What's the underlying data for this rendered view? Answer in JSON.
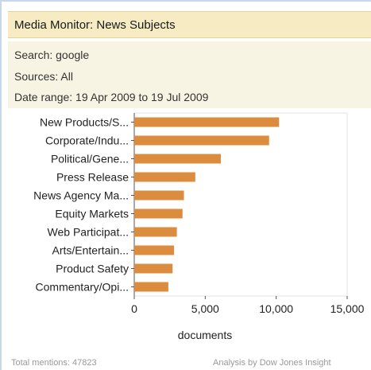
{
  "widget": {
    "title": "Media Monitor: News Subjects",
    "search": "Search: google",
    "sources": "Sources: All",
    "date_range": "Date range: 19 Apr 2009 to 19 Jul 2009",
    "total_mentions": "Total mentions: 47823",
    "credit": "Analysis by Dow Jones Insight"
  },
  "colors": {
    "bar": "#dc8c3e",
    "axis": "#555555",
    "header_bg": "#f6ebc2"
  },
  "chart_data": {
    "type": "bar",
    "orientation": "horizontal",
    "categories": [
      "New Products/S...",
      "Corporate/Indu...",
      "Political/Gene...",
      "Press Release",
      "News Agency Ma...",
      "Equity Markets",
      "Web Participat...",
      "Arts/Entertain...",
      "Product Safety",
      "Commentary/Opi..."
    ],
    "values": [
      10200,
      9500,
      6100,
      4300,
      3500,
      3400,
      3000,
      2800,
      2700,
      2400
    ],
    "xlabel": "documents",
    "xlim": [
      0,
      15000
    ],
    "xticks": [
      "0",
      "5,000",
      "10,000",
      "15,000"
    ],
    "grid": false,
    "legend": "none"
  }
}
